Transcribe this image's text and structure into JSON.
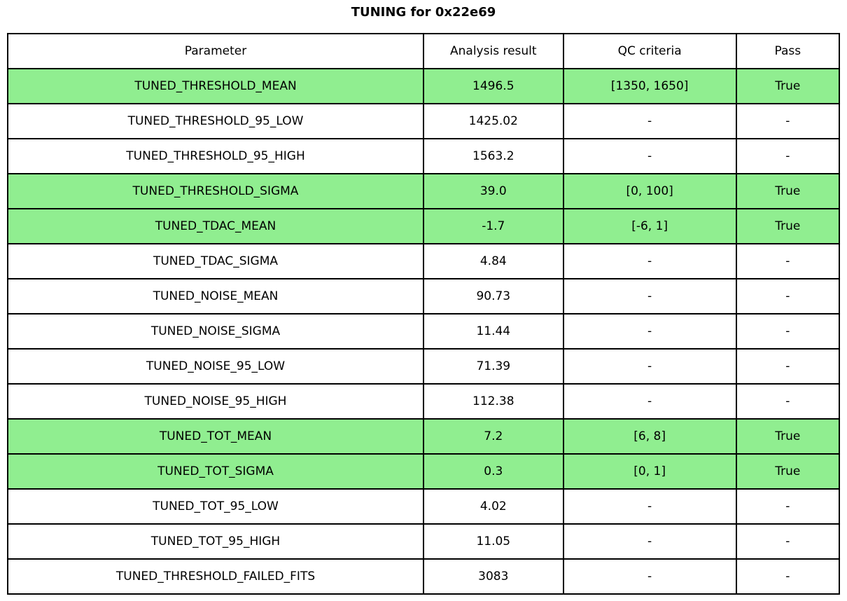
{
  "title": "TUNING for 0x22e69",
  "colors": {
    "highlight_row": "#90ee90",
    "border": "#000000",
    "background": "#ffffff",
    "text": "#000000"
  },
  "chart_data": {
    "type": "table",
    "title": "TUNING for 0x22e69",
    "columns": [
      "Parameter",
      "Analysis result",
      "QC criteria",
      "Pass"
    ],
    "rows": [
      {
        "parameter": "TUNED_THRESHOLD_MEAN",
        "result": "1496.5",
        "qc": "[1350, 1650]",
        "pass": "True",
        "highlight": true
      },
      {
        "parameter": "TUNED_THRESHOLD_95_LOW",
        "result": "1425.02",
        "qc": "-",
        "pass": "-",
        "highlight": false
      },
      {
        "parameter": "TUNED_THRESHOLD_95_HIGH",
        "result": "1563.2",
        "qc": "-",
        "pass": "-",
        "highlight": false
      },
      {
        "parameter": "TUNED_THRESHOLD_SIGMA",
        "result": "39.0",
        "qc": "[0, 100]",
        "pass": "True",
        "highlight": true
      },
      {
        "parameter": "TUNED_TDAC_MEAN",
        "result": "-1.7",
        "qc": "[-6, 1]",
        "pass": "True",
        "highlight": true
      },
      {
        "parameter": "TUNED_TDAC_SIGMA",
        "result": "4.84",
        "qc": "-",
        "pass": "-",
        "highlight": false
      },
      {
        "parameter": "TUNED_NOISE_MEAN",
        "result": "90.73",
        "qc": "-",
        "pass": "-",
        "highlight": false
      },
      {
        "parameter": "TUNED_NOISE_SIGMA",
        "result": "11.44",
        "qc": "-",
        "pass": "-",
        "highlight": false
      },
      {
        "parameter": "TUNED_NOISE_95_LOW",
        "result": "71.39",
        "qc": "-",
        "pass": "-",
        "highlight": false
      },
      {
        "parameter": "TUNED_NOISE_95_HIGH",
        "result": "112.38",
        "qc": "-",
        "pass": "-",
        "highlight": false
      },
      {
        "parameter": "TUNED_TOT_MEAN",
        "result": "7.2",
        "qc": "[6, 8]",
        "pass": "True",
        "highlight": true
      },
      {
        "parameter": "TUNED_TOT_SIGMA",
        "result": "0.3",
        "qc": "[0, 1]",
        "pass": "True",
        "highlight": true
      },
      {
        "parameter": "TUNED_TOT_95_LOW",
        "result": "4.02",
        "qc": "-",
        "pass": "-",
        "highlight": false
      },
      {
        "parameter": "TUNED_TOT_95_HIGH",
        "result": "11.05",
        "qc": "-",
        "pass": "-",
        "highlight": false
      },
      {
        "parameter": "TUNED_THRESHOLD_FAILED_FITS",
        "result": "3083",
        "qc": "-",
        "pass": "-",
        "highlight": false
      }
    ]
  }
}
